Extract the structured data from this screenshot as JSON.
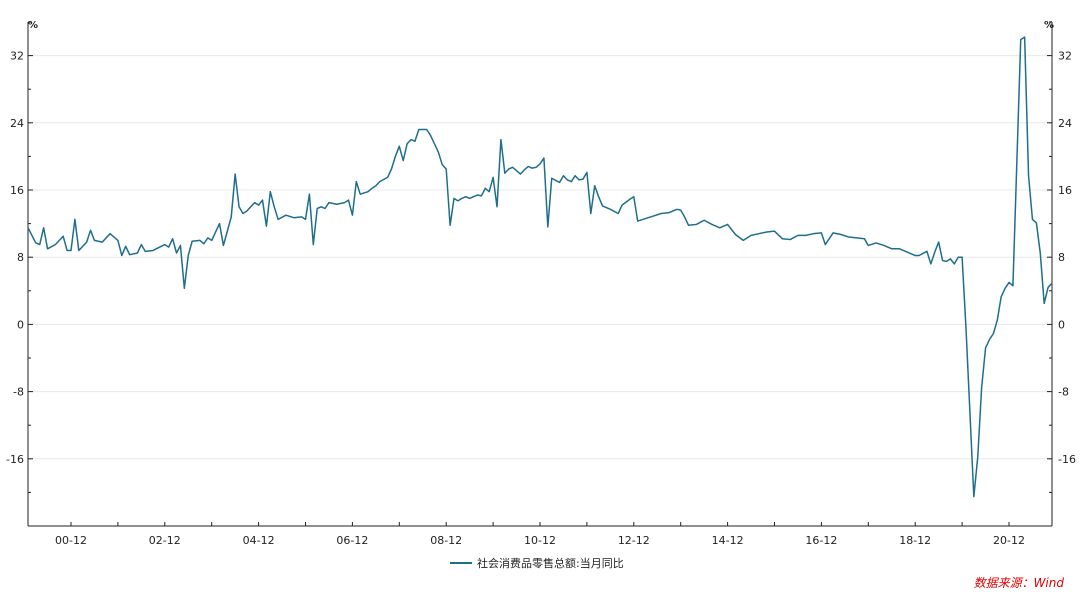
{
  "colors": {
    "series": "#1f6e8c",
    "axis": "#222222",
    "grid": "#e8e8e8",
    "source": "#e00000"
  },
  "chart_data": {
    "type": "line",
    "title": "",
    "xlabel": "",
    "ylabel": "%",
    "ylabel_right": "%",
    "ylim": [
      -24,
      36
    ],
    "yticks": [
      -16,
      -8,
      0,
      8,
      16,
      24,
      32
    ],
    "xlim": [
      "2000-01",
      "2021-06"
    ],
    "xticks": [
      "00-12",
      "02-12",
      "04-12",
      "06-12",
      "08-12",
      "10-12",
      "12-12",
      "14-12",
      "16-12",
      "18-12",
      "20-12"
    ],
    "grid": true,
    "legend_position": "bottom-center",
    "series": [
      {
        "name": "社会消费品零售总额:当月同比",
        "points": [
          [
            "2000-01",
            11.5
          ],
          [
            "2000-03",
            9.7
          ],
          [
            "2000-04",
            9.5
          ],
          [
            "2000-05",
            11.5
          ],
          [
            "2000-06",
            9.0
          ],
          [
            "2000-08",
            9.5
          ],
          [
            "2000-10",
            10.5
          ],
          [
            "2000-11",
            8.8
          ],
          [
            "2000-12",
            8.8
          ],
          [
            "2001-01",
            12.5
          ],
          [
            "2001-02",
            8.8
          ],
          [
            "2001-04",
            9.8
          ],
          [
            "2001-05",
            11.2
          ],
          [
            "2001-06",
            10.0
          ],
          [
            "2001-08",
            9.8
          ],
          [
            "2001-10",
            10.8
          ],
          [
            "2001-12",
            10.0
          ],
          [
            "2002-01",
            8.2
          ],
          [
            "2002-02",
            9.3
          ],
          [
            "2002-03",
            8.3
          ],
          [
            "2002-05",
            8.5
          ],
          [
            "2002-06",
            9.5
          ],
          [
            "2002-07",
            8.7
          ],
          [
            "2002-09",
            8.8
          ],
          [
            "2002-12",
            9.5
          ],
          [
            "2003-01",
            9.2
          ],
          [
            "2003-02",
            10.2
          ],
          [
            "2003-03",
            8.5
          ],
          [
            "2003-04",
            9.4
          ],
          [
            "2003-05",
            4.3
          ],
          [
            "2003-06",
            8.2
          ],
          [
            "2003-07",
            9.9
          ],
          [
            "2003-09",
            10.0
          ],
          [
            "2003-10",
            9.6
          ],
          [
            "2003-11",
            10.3
          ],
          [
            "2003-12",
            10.0
          ],
          [
            "2004-02",
            12.0
          ],
          [
            "2004-03",
            9.4
          ],
          [
            "2004-05",
            12.8
          ],
          [
            "2004-06",
            17.9
          ],
          [
            "2004-07",
            14.0
          ],
          [
            "2004-08",
            13.2
          ],
          [
            "2004-09",
            13.5
          ],
          [
            "2004-10",
            14.0
          ],
          [
            "2004-11",
            14.5
          ],
          [
            "2004-12",
            14.2
          ],
          [
            "2005-01",
            14.8
          ],
          [
            "2005-02",
            11.7
          ],
          [
            "2005-03",
            15.8
          ],
          [
            "2005-04",
            14.0
          ],
          [
            "2005-05",
            12.5
          ],
          [
            "2005-07",
            13.0
          ],
          [
            "2005-09",
            12.7
          ],
          [
            "2005-11",
            12.8
          ],
          [
            "2005-12",
            12.5
          ],
          [
            "2006-01",
            15.5
          ],
          [
            "2006-02",
            9.5
          ],
          [
            "2006-03",
            13.8
          ],
          [
            "2006-04",
            14.0
          ],
          [
            "2006-05",
            13.8
          ],
          [
            "2006-06",
            14.5
          ],
          [
            "2006-08",
            14.3
          ],
          [
            "2006-10",
            14.5
          ],
          [
            "2006-11",
            14.8
          ],
          [
            "2006-12",
            13.0
          ],
          [
            "2007-01",
            17.0
          ],
          [
            "2007-02",
            15.5
          ],
          [
            "2007-04",
            15.8
          ],
          [
            "2007-05",
            16.2
          ],
          [
            "2007-06",
            16.5
          ],
          [
            "2007-07",
            17.0
          ],
          [
            "2007-09",
            17.5
          ],
          [
            "2007-10",
            18.5
          ],
          [
            "2007-11",
            20.0
          ],
          [
            "2007-12",
            21.2
          ],
          [
            "2008-01",
            19.5
          ],
          [
            "2008-02",
            21.5
          ],
          [
            "2008-03",
            22.0
          ],
          [
            "2008-04",
            21.8
          ],
          [
            "2008-05",
            23.2
          ],
          [
            "2008-07",
            23.2
          ],
          [
            "2008-08",
            22.5
          ],
          [
            "2008-09",
            21.5
          ],
          [
            "2008-10",
            20.5
          ],
          [
            "2008-11",
            19.0
          ],
          [
            "2008-12",
            18.5
          ],
          [
            "2009-01",
            11.8
          ],
          [
            "2009-02",
            15.0
          ],
          [
            "2009-03",
            14.7
          ],
          [
            "2009-04",
            15.0
          ],
          [
            "2009-05",
            15.2
          ],
          [
            "2009-06",
            15.0
          ],
          [
            "2009-07",
            15.2
          ],
          [
            "2009-08",
            15.4
          ],
          [
            "2009-09",
            15.3
          ],
          [
            "2009-10",
            16.2
          ],
          [
            "2009-11",
            15.8
          ],
          [
            "2009-12",
            17.5
          ],
          [
            "2010-01",
            14.0
          ],
          [
            "2010-02",
            22.0
          ],
          [
            "2010-03",
            18.0
          ],
          [
            "2010-04",
            18.5
          ],
          [
            "2010-05",
            18.7
          ],
          [
            "2010-06",
            18.3
          ],
          [
            "2010-07",
            17.9
          ],
          [
            "2010-08",
            18.4
          ],
          [
            "2010-09",
            18.8
          ],
          [
            "2010-10",
            18.6
          ],
          [
            "2010-11",
            18.7
          ],
          [
            "2010-12",
            19.1
          ],
          [
            "2011-01",
            19.8
          ],
          [
            "2011-02",
            11.6
          ],
          [
            "2011-03",
            17.4
          ],
          [
            "2011-05",
            16.9
          ],
          [
            "2011-06",
            17.7
          ],
          [
            "2011-07",
            17.2
          ],
          [
            "2011-08",
            17.0
          ],
          [
            "2011-09",
            17.7
          ],
          [
            "2011-10",
            17.2
          ],
          [
            "2011-11",
            17.3
          ],
          [
            "2011-12",
            18.1
          ],
          [
            "2012-01",
            13.2
          ],
          [
            "2012-02",
            16.5
          ],
          [
            "2012-03",
            15.2
          ],
          [
            "2012-04",
            14.1
          ],
          [
            "2012-06",
            13.7
          ],
          [
            "2012-08",
            13.2
          ],
          [
            "2012-09",
            14.2
          ],
          [
            "2012-11",
            14.9
          ],
          [
            "2012-12",
            15.2
          ],
          [
            "2013-01",
            12.3
          ],
          [
            "2013-03",
            12.6
          ],
          [
            "2013-05",
            12.9
          ],
          [
            "2013-07",
            13.2
          ],
          [
            "2013-09",
            13.3
          ],
          [
            "2013-11",
            13.7
          ],
          [
            "2013-12",
            13.6
          ],
          [
            "2014-01",
            12.8
          ],
          [
            "2014-02",
            11.8
          ],
          [
            "2014-04",
            11.9
          ],
          [
            "2014-06",
            12.4
          ],
          [
            "2014-08",
            11.9
          ],
          [
            "2014-10",
            11.5
          ],
          [
            "2014-12",
            11.9
          ],
          [
            "2015-02",
            10.7
          ],
          [
            "2015-04",
            10.0
          ],
          [
            "2015-06",
            10.6
          ],
          [
            "2015-08",
            10.8
          ],
          [
            "2015-10",
            11.0
          ],
          [
            "2015-12",
            11.1
          ],
          [
            "2016-02",
            10.2
          ],
          [
            "2016-04",
            10.1
          ],
          [
            "2016-06",
            10.6
          ],
          [
            "2016-08",
            10.6
          ],
          [
            "2016-10",
            10.8
          ],
          [
            "2016-12",
            10.9
          ],
          [
            "2017-01",
            9.5
          ],
          [
            "2017-03",
            10.9
          ],
          [
            "2017-05",
            10.7
          ],
          [
            "2017-07",
            10.4
          ],
          [
            "2017-09",
            10.3
          ],
          [
            "2017-11",
            10.2
          ],
          [
            "2017-12",
            9.4
          ],
          [
            "2018-02",
            9.7
          ],
          [
            "2018-04",
            9.4
          ],
          [
            "2018-06",
            9.0
          ],
          [
            "2018-08",
            9.0
          ],
          [
            "2018-10",
            8.6
          ],
          [
            "2018-12",
            8.2
          ],
          [
            "2019-01",
            8.2
          ],
          [
            "2019-03",
            8.7
          ],
          [
            "2019-04",
            7.2
          ],
          [
            "2019-05",
            8.6
          ],
          [
            "2019-06",
            9.8
          ],
          [
            "2019-07",
            7.6
          ],
          [
            "2019-08",
            7.5
          ],
          [
            "2019-09",
            7.8
          ],
          [
            "2019-10",
            7.2
          ],
          [
            "2019-11",
            8.0
          ],
          [
            "2019-12",
            8.0
          ],
          [
            "2020-01",
            -0.5
          ],
          [
            "2020-03",
            -20.5
          ],
          [
            "2020-04",
            -15.8
          ],
          [
            "2020-05",
            -7.5
          ],
          [
            "2020-06",
            -2.8
          ],
          [
            "2020-07",
            -1.8
          ],
          [
            "2020-08",
            -1.1
          ],
          [
            "2020-09",
            0.5
          ],
          [
            "2020-10",
            3.3
          ],
          [
            "2020-11",
            4.3
          ],
          [
            "2020-12",
            5.0
          ],
          [
            "2021-01",
            4.6
          ],
          [
            "2021-03",
            33.9
          ],
          [
            "2021-04",
            34.2
          ],
          [
            "2021-05",
            17.7
          ],
          [
            "2021-06",
            12.5
          ],
          [
            "2021-07",
            12.1
          ],
          [
            "2021-08",
            8.5
          ],
          [
            "2021-09",
            2.5
          ],
          [
            "2021-10",
            4.4
          ],
          [
            "2021-11",
            4.9
          ]
        ]
      }
    ]
  },
  "legend": {
    "label": "社会消费品零售总额:当月同比"
  },
  "source": {
    "text": "数据来源：Wind"
  }
}
